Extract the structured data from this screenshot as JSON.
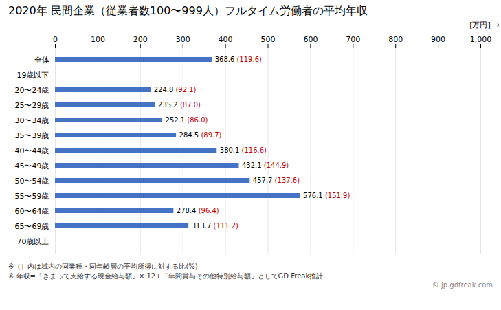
{
  "chart_data": {
    "type": "bar",
    "orientation": "horizontal",
    "title": "2020年 民間企業（従業者数100〜999人）フルタイム労働者の平均年収",
    "xlabel": "[万円]",
    "categories": [
      "全体",
      "19歳以下",
      "20〜24歳",
      "25〜29歳",
      "30〜34歳",
      "35〜39歳",
      "40〜44歳",
      "45〜49歳",
      "50〜54歳",
      "55〜59歳",
      "60〜64歳",
      "65〜69歳",
      "70歳以上"
    ],
    "values": [
      368.6,
      0,
      224.8,
      235.2,
      252.1,
      284.5,
      380.1,
      432.1,
      457.7,
      576.1,
      278.4,
      313.7,
      0
    ],
    "data_labels": true,
    "value_labels": [
      "368.6",
      null,
      "224.8",
      "235.2",
      "252.1",
      "284.5",
      "380.1",
      "432.1",
      "457.7",
      "576.1",
      "278.4",
      "313.7",
      null
    ],
    "ratios": [
      119.6,
      null,
      92.1,
      87.0,
      86.0,
      89.7,
      116.6,
      144.9,
      137.6,
      151.9,
      96.4,
      111.2,
      null
    ],
    "ratio_labels": [
      "(119.6)",
      null,
      "(92.1)",
      "(87.0)",
      "(86.0)",
      "(89.7)",
      "(116.6)",
      "(144.9)",
      "(137.6)",
      "(151.9)",
      "(96.4)",
      "(111.2)",
      null
    ],
    "ratio_color": "#C00000",
    "color": "#4472C4",
    "xlim": [
      0,
      1000
    ],
    "xticks": [
      0,
      100,
      200,
      300,
      400,
      500,
      600,
      700,
      800,
      900,
      1000
    ],
    "grid": true,
    "annotations": [
      "※（）内は域内の同業種・同年齢層の平均所得に対する比(%)",
      "※ 年収=「きまって支給する現金給与額」× 12+「年間賞与その他特別給与額」としてGD Freak推計",
      "© jp.gdfreak.com"
    ]
  }
}
